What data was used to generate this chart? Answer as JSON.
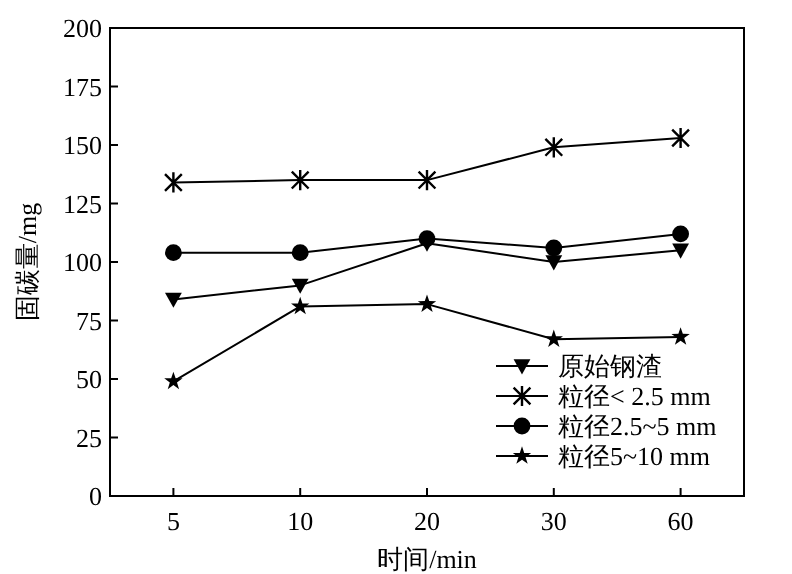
{
  "chart_data": {
    "type": "line",
    "xlabel": "时间/min",
    "ylabel": "固碳量/mg",
    "categories": [
      "5",
      "10",
      "20",
      "30",
      "60"
    ],
    "ylim": [
      0,
      200
    ],
    "yticks": [
      0,
      25,
      50,
      75,
      100,
      125,
      150,
      175,
      200
    ],
    "legend": "bottom right",
    "grid": false,
    "line_style": "solid",
    "series": [
      {
        "name": "原始钢渣",
        "color": "#000000",
        "marker": "triangle",
        "values": [
          84,
          90,
          108,
          100,
          105
        ]
      },
      {
        "name": "粒径< 2.5 mm",
        "color": "#000000",
        "marker": "cross",
        "values": [
          134,
          135,
          135,
          149,
          153
        ]
      },
      {
        "name": "粒径2.5~5 mm",
        "color": "#000000",
        "marker": "circle",
        "values": [
          104,
          104,
          110,
          106,
          112
        ]
      },
      {
        "name": "粒径5~10 mm",
        "color": "#000000",
        "marker": "star",
        "values": [
          49,
          81,
          82,
          67,
          68
        ]
      }
    ]
  }
}
